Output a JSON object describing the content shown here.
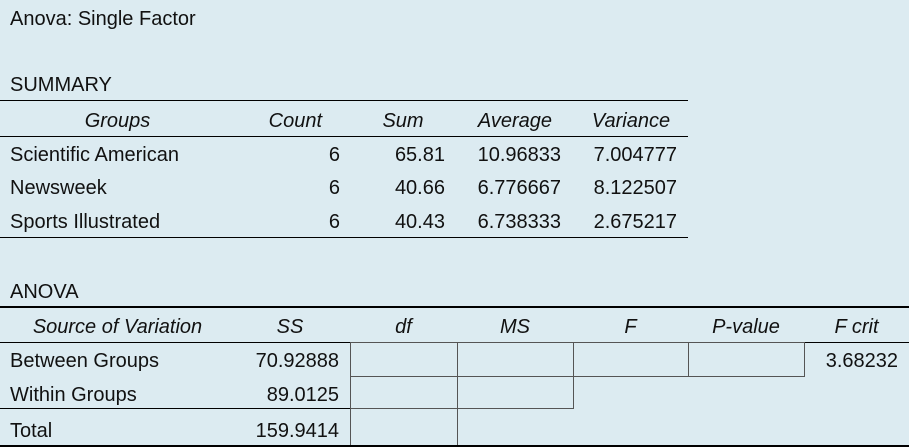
{
  "title": "Anova: Single Factor",
  "summary": {
    "label": "SUMMARY",
    "headers": [
      "Groups",
      "Count",
      "Sum",
      "Average",
      "Variance"
    ],
    "rows": [
      {
        "group": "Scientific American",
        "count": "6",
        "sum": "65.81",
        "average": "10.96833",
        "variance": "7.004777"
      },
      {
        "group": "Newsweek",
        "count": "6",
        "sum": "40.66",
        "average": "6.776667",
        "variance": "8.122507"
      },
      {
        "group": "Sports Illustrated",
        "count": "6",
        "sum": "40.43",
        "average": "6.738333",
        "variance": "2.675217"
      }
    ]
  },
  "anova": {
    "label": "ANOVA",
    "headers": [
      "Source of Variation",
      "SS",
      "df",
      "MS",
      "F",
      "P-value",
      "F crit"
    ],
    "rows": [
      {
        "source": "Between Groups",
        "ss": "70.92888",
        "fcrit": "3.68232"
      },
      {
        "source": "Within Groups",
        "ss": "89.0125"
      },
      {
        "source": "Total",
        "ss": "159.9414"
      }
    ]
  }
}
